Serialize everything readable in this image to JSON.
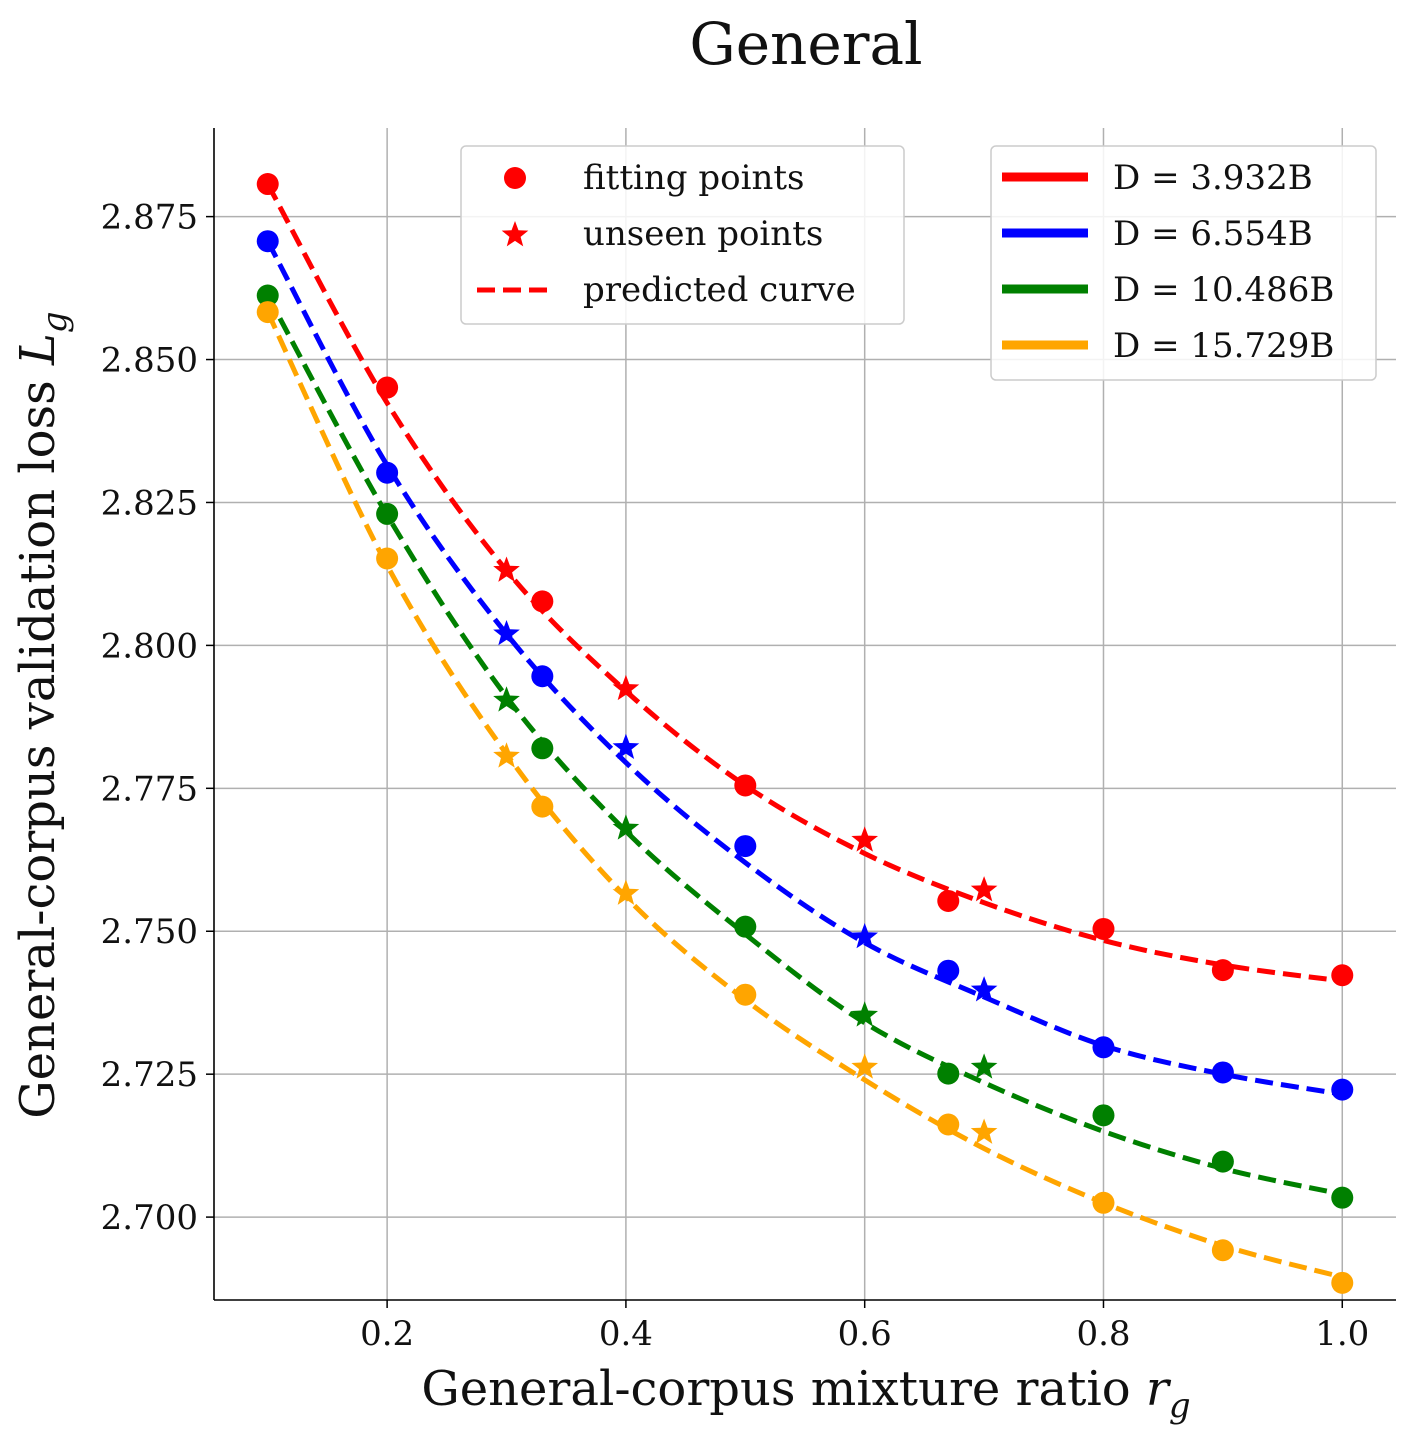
{
  "chart_data": {
    "type": "line",
    "title": "General",
    "xlabel": "General-corpus mixture ratio",
    "xlabel_symbol": "r",
    "xlabel_sub": "g",
    "ylabel": "General-corpus validation loss",
    "ylabel_symbol": "L",
    "ylabel_sub": "g",
    "xlim": [
      0.055,
      1.045
    ],
    "ylim": [
      2.6855,
      2.8905
    ],
    "xticks": [
      0.2,
      0.4,
      0.6,
      0.8,
      1.0
    ],
    "xtick_labels": [
      "0.2",
      "0.4",
      "0.6",
      "0.8",
      "1.0"
    ],
    "yticks": [
      2.7,
      2.725,
      2.75,
      2.775,
      2.8,
      2.825,
      2.85,
      2.875
    ],
    "ytick_labels": [
      "2.700",
      "2.725",
      "2.750",
      "2.775",
      "2.800",
      "2.825",
      "2.850",
      "2.875"
    ],
    "grid": true,
    "marker_legend": {
      "placement": "top-center",
      "entries": [
        {
          "label": "fitting points",
          "marker": "circle"
        },
        {
          "label": "unseen points",
          "marker": "star"
        },
        {
          "label": "predicted curve",
          "marker": "dashed-line"
        }
      ]
    },
    "series_legend": {
      "placement": "top-right"
    },
    "series": [
      {
        "name": "D = 3.932B",
        "color": "#ff0000",
        "fitting_points": {
          "x": [
            0.1,
            0.2,
            0.33,
            0.5,
            0.67,
            0.8,
            0.9,
            1.0
          ],
          "y": [
            2.8807,
            2.8451,
            2.8077,
            2.7755,
            2.7553,
            2.7504,
            2.7432,
            2.7423
          ]
        },
        "unseen_points": {
          "x": [
            0.3,
            0.4,
            0.6,
            0.7
          ],
          "y": [
            2.8131,
            2.7924,
            2.7659,
            2.7572
          ]
        },
        "curve": {
          "x": [
            0.1,
            0.2,
            0.3,
            0.4,
            0.5,
            0.6,
            0.7,
            0.8,
            0.9,
            1.0
          ],
          "y": [
            2.8807,
            2.8424,
            2.8131,
            2.792,
            2.7755,
            2.7636,
            2.755,
            2.7484,
            2.7441,
            2.7413
          ]
        }
      },
      {
        "name": "D = 6.554B",
        "color": "#0000ff",
        "fitting_points": {
          "x": [
            0.1,
            0.2,
            0.33,
            0.5,
            0.67,
            0.8,
            0.9,
            1.0
          ],
          "y": [
            2.8707,
            2.8302,
            2.7946,
            2.7649,
            2.7431,
            2.7297,
            2.7253,
            2.7223
          ]
        },
        "unseen_points": {
          "x": [
            0.3,
            0.4,
            0.6,
            0.7
          ],
          "y": [
            2.802,
            2.7821,
            2.749,
            2.7397
          ]
        },
        "curve": {
          "x": [
            0.1,
            0.2,
            0.3,
            0.4,
            0.5,
            0.6,
            0.7,
            0.8,
            0.9,
            1.0
          ],
          "y": [
            2.8707,
            2.8315,
            2.802,
            2.7795,
            2.762,
            2.748,
            2.7385,
            2.73,
            2.725,
            2.7215
          ]
        }
      },
      {
        "name": "D = 10.486B",
        "color": "#008000",
        "fitting_points": {
          "x": [
            0.1,
            0.2,
            0.33,
            0.5,
            0.67,
            0.8,
            0.9,
            1.0
          ],
          "y": [
            2.8612,
            2.823,
            2.782,
            2.7508,
            2.7251,
            2.7178,
            2.7097,
            2.7034
          ]
        },
        "unseen_points": {
          "x": [
            0.3,
            0.4,
            0.6,
            0.7
          ],
          "y": [
            2.7904,
            2.768,
            2.7353,
            2.7262
          ]
        },
        "curve": {
          "x": [
            0.1,
            0.2,
            0.3,
            0.4,
            0.5,
            0.6,
            0.7,
            0.8,
            0.9,
            1.0
          ],
          "y": [
            2.8612,
            2.8228,
            2.791,
            2.7675,
            2.7495,
            2.734,
            2.7235,
            2.715,
            2.7085,
            2.704
          ]
        }
      },
      {
        "name": "D = 15.729B",
        "color": "#ffa500",
        "fitting_points": {
          "x": [
            0.1,
            0.2,
            0.33,
            0.5,
            0.67,
            0.8,
            0.9,
            1.0
          ],
          "y": [
            2.8583,
            2.8152,
            2.7718,
            2.7389,
            2.7162,
            2.7025,
            2.6942,
            2.6885
          ]
        },
        "unseen_points": {
          "x": [
            0.3,
            0.4,
            0.6,
            0.7
          ],
          "y": [
            2.7806,
            2.7566,
            2.7262,
            2.7148
          ]
        },
        "curve": {
          "x": [
            0.1,
            0.2,
            0.3,
            0.4,
            0.5,
            0.6,
            0.7,
            0.8,
            0.9,
            1.0
          ],
          "y": [
            2.8583,
            2.814,
            2.781,
            2.756,
            2.738,
            2.724,
            2.712,
            2.7025,
            2.695,
            2.6895
          ]
        }
      }
    ]
  }
}
